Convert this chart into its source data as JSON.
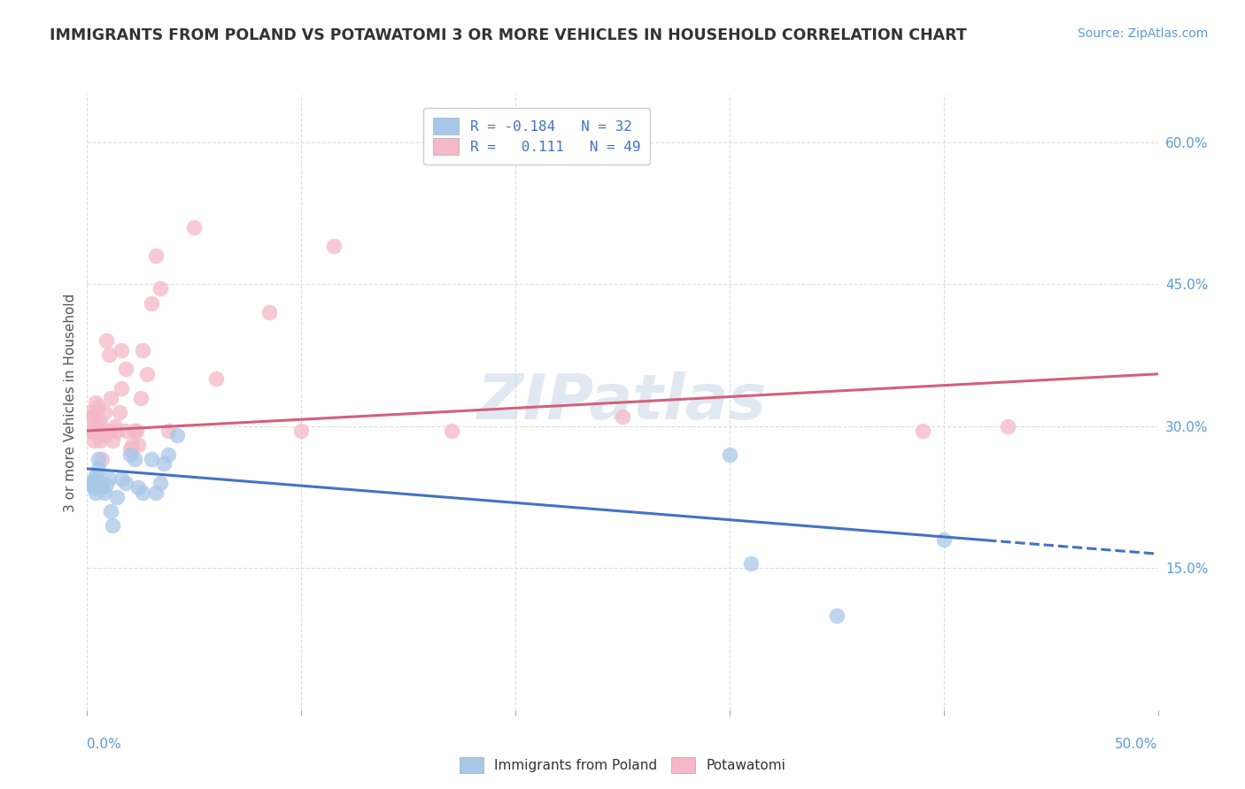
{
  "title": "IMMIGRANTS FROM POLAND VS POTAWATOMI 3 OR MORE VEHICLES IN HOUSEHOLD CORRELATION CHART",
  "source": "Source: ZipAtlas.com",
  "ylabel": "3 or more Vehicles in Household",
  "xlim": [
    0.0,
    0.5
  ],
  "ylim": [
    0.0,
    0.65
  ],
  "xticks": [
    0.0,
    0.1,
    0.2,
    0.3,
    0.4,
    0.5
  ],
  "xticklabels": [
    "0.0%",
    "",
    "",
    "",
    "",
    "50.0%"
  ],
  "yticks_right": [
    0.15,
    0.3,
    0.45,
    0.6
  ],
  "yticklabels_right": [
    "15.0%",
    "30.0%",
    "45.0%",
    "60.0%"
  ],
  "blue_color": "#a8c8e8",
  "pink_color": "#f4b8c8",
  "blue_line_color": "#4472c4",
  "pink_line_color": "#d4607a",
  "R_blue": -0.184,
  "N_blue": 32,
  "R_pink": 0.111,
  "N_pink": 49,
  "watermark": "ZIPatlas",
  "blue_scatter_x": [
    0.001,
    0.002,
    0.003,
    0.003,
    0.004,
    0.004,
    0.005,
    0.005,
    0.006,
    0.007,
    0.008,
    0.009,
    0.01,
    0.011,
    0.012,
    0.014,
    0.016,
    0.018,
    0.02,
    0.022,
    0.024,
    0.026,
    0.03,
    0.032,
    0.034,
    0.036,
    0.038,
    0.042,
    0.3,
    0.31,
    0.35,
    0.4
  ],
  "blue_scatter_y": [
    0.24,
    0.238,
    0.242,
    0.235,
    0.23,
    0.248,
    0.255,
    0.265,
    0.24,
    0.235,
    0.23,
    0.238,
    0.245,
    0.21,
    0.195,
    0.225,
    0.245,
    0.24,
    0.27,
    0.265,
    0.235,
    0.23,
    0.265,
    0.23,
    0.24,
    0.26,
    0.27,
    0.29,
    0.27,
    0.155,
    0.1,
    0.18
  ],
  "pink_scatter_x": [
    0.001,
    0.001,
    0.002,
    0.002,
    0.003,
    0.003,
    0.004,
    0.004,
    0.005,
    0.005,
    0.006,
    0.006,
    0.007,
    0.007,
    0.008,
    0.008,
    0.009,
    0.01,
    0.01,
    0.011,
    0.012,
    0.013,
    0.014,
    0.015,
    0.016,
    0.016,
    0.018,
    0.018,
    0.02,
    0.021,
    0.022,
    0.023,
    0.024,
    0.025,
    0.026,
    0.028,
    0.03,
    0.032,
    0.034,
    0.038,
    0.05,
    0.06,
    0.085,
    0.1,
    0.115,
    0.17,
    0.25,
    0.39,
    0.43
  ],
  "pink_scatter_y": [
    0.295,
    0.315,
    0.31,
    0.295,
    0.285,
    0.31,
    0.3,
    0.325,
    0.3,
    0.32,
    0.305,
    0.285,
    0.265,
    0.295,
    0.315,
    0.29,
    0.39,
    0.375,
    0.295,
    0.33,
    0.285,
    0.3,
    0.295,
    0.315,
    0.34,
    0.38,
    0.295,
    0.36,
    0.275,
    0.28,
    0.295,
    0.295,
    0.28,
    0.33,
    0.38,
    0.355,
    0.43,
    0.48,
    0.445,
    0.295,
    0.51,
    0.35,
    0.42,
    0.295,
    0.49,
    0.295,
    0.31,
    0.295,
    0.3
  ],
  "grid_color": "#dddddd",
  "background_color": "#ffffff",
  "blue_trend_x0": 0.0,
  "blue_trend_y0": 0.255,
  "blue_trend_x1": 0.5,
  "blue_trend_y1": 0.165,
  "pink_trend_x0": 0.0,
  "pink_trend_y0": 0.295,
  "pink_trend_x1": 0.5,
  "pink_trend_y1": 0.355
}
